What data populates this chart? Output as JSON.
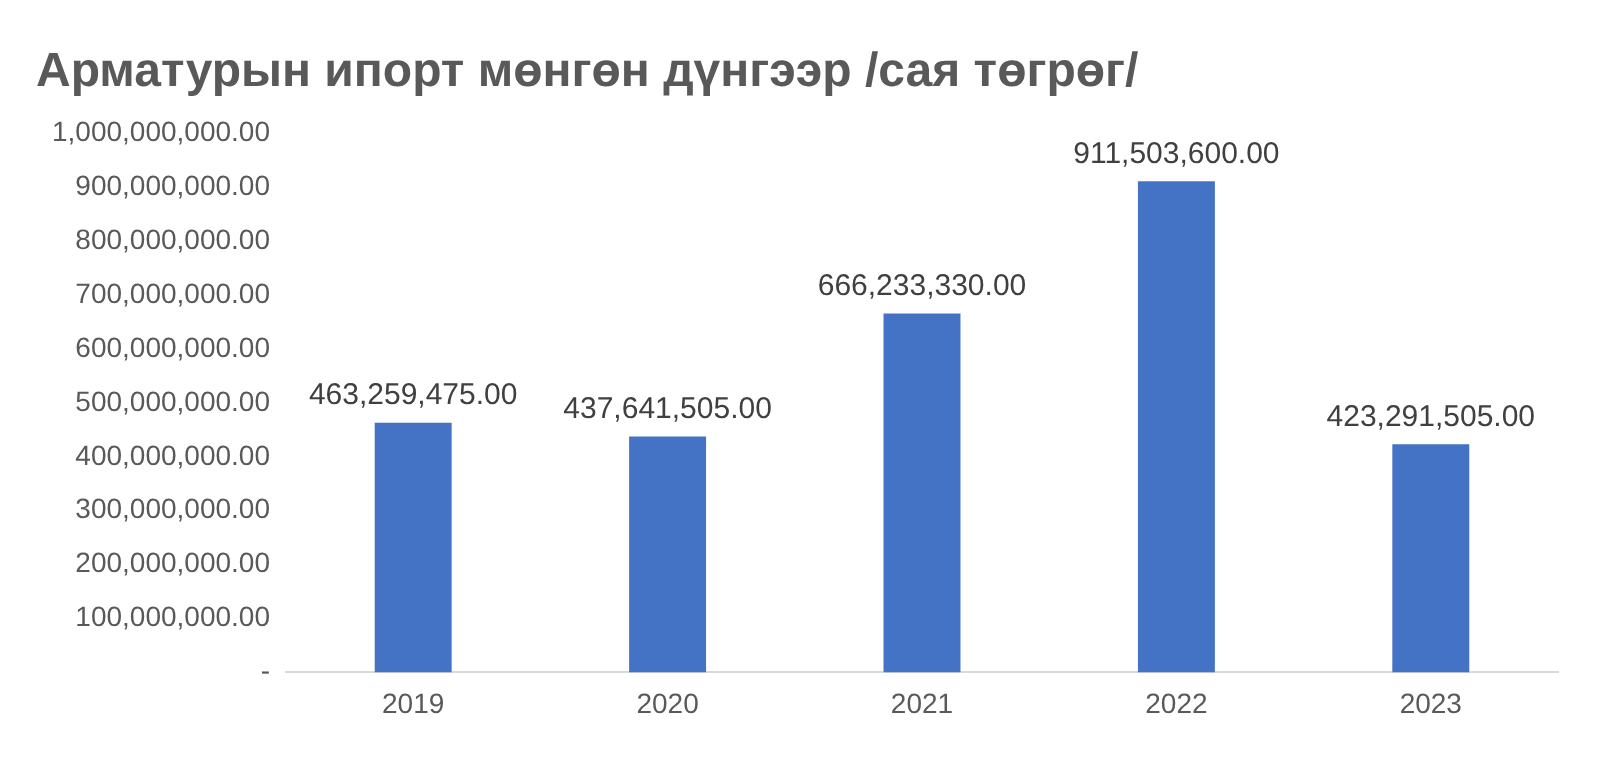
{
  "chart_data": {
    "type": "bar",
    "title": "Арматурын ипорт мөнгөн дүнгээр /сая төгрөг/",
    "categories": [
      "2019",
      "2020",
      "2021",
      "2022",
      "2023"
    ],
    "values": [
      463259475,
      437641505,
      666233330,
      911503600,
      423291505
    ],
    "value_labels": [
      "463,259,475.00",
      "437,641,505.00",
      "666,233,330.00",
      "911,503,600.00",
      "423,291,505.00"
    ],
    "color": "#4472c4",
    "ylim": [
      0,
      1000000000
    ],
    "yticks": [
      {
        "value": 0,
        "label": "-"
      },
      {
        "value": 100000000,
        "label": "100,000,000.00"
      },
      {
        "value": 200000000,
        "label": "200,000,000.00"
      },
      {
        "value": 300000000,
        "label": "300,000,000.00"
      },
      {
        "value": 400000000,
        "label": "400,000,000.00"
      },
      {
        "value": 500000000,
        "label": "500,000,000.00"
      },
      {
        "value": 600000000,
        "label": "600,000,000.00"
      },
      {
        "value": 700000000,
        "label": "700,000,000.00"
      },
      {
        "value": 800000000,
        "label": "800,000,000.00"
      },
      {
        "value": 900000000,
        "label": "900,000,000.00"
      },
      {
        "value": 1000000000,
        "label": "1,000,000,000.00"
      }
    ],
    "grid": false,
    "legend": false
  }
}
